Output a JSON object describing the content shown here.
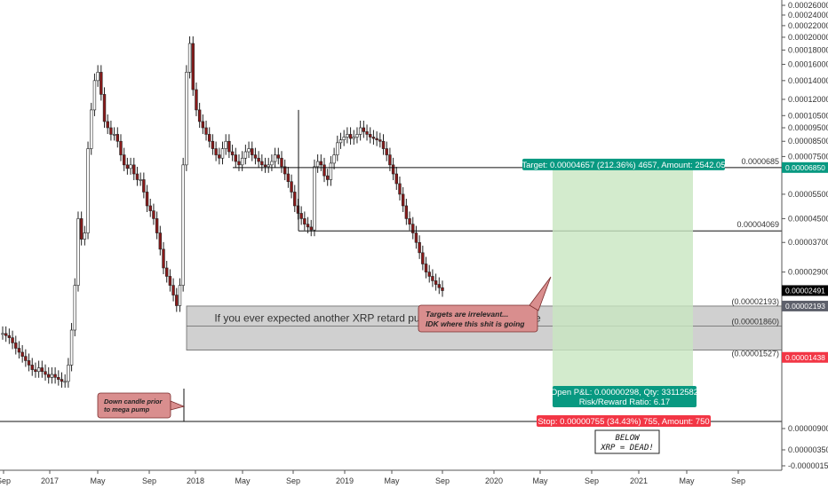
{
  "chart_data": {
    "type": "candlestick",
    "ylabel": "",
    "xlabel": "",
    "y_axis": {
      "scale": "log",
      "range": [
        5.5e-06,
        2.6e-05
      ],
      "labels": [
        {
          "text": "0.00026000",
          "v": 0.00026
        },
        {
          "text": "0.00024000",
          "v": 0.00024
        },
        {
          "text": "0.00022000",
          "v": 0.00022
        },
        {
          "text": "0.00020000",
          "v": 0.0002
        },
        {
          "text": "0.00018000",
          "v": 0.00018
        },
        {
          "text": "0.00016000",
          "v": 0.00016
        },
        {
          "text": "0.00014000",
          "v": 0.00014
        },
        {
          "text": "0.00012000",
          "v": 0.00012
        },
        {
          "text": "0.00010500",
          "v": 0.000105
        },
        {
          "text": "0.00009500",
          "v": 9.5e-05
        },
        {
          "text": "0.00008500",
          "v": 8.5e-05
        },
        {
          "text": "0.00007500",
          "v": 7.5e-05
        },
        {
          "text": "0.00005500",
          "v": 5.5e-05
        },
        {
          "text": "0.00004500",
          "v": 4.5e-05
        },
        {
          "text": "0.00003700",
          "v": 3.7e-05
        },
        {
          "text": "0.00002900",
          "v": 2.9e-05
        },
        {
          "text": "0.00000900",
          "v": 9e-06
        },
        {
          "text": "0.00000350",
          "v": 3.5e-06
        },
        {
          "text": "-0.00000150",
          "v": -1.5e-06
        }
      ],
      "badges": [
        {
          "text": "0.00006850",
          "v": 6.85e-05,
          "color": "#089981"
        },
        {
          "text": "0.00002491",
          "v": 2.491e-05,
          "color": "#000000"
        },
        {
          "text": "0.00002193",
          "v": 2.193e-05,
          "color": "#5d606b"
        },
        {
          "text": "0.00001438",
          "v": 1.438e-05,
          "color": "#f23645"
        }
      ]
    },
    "x_axis": {
      "labels": [
        "Sep",
        "2017",
        "May",
        "Sep",
        "2018",
        "May",
        "Sep",
        "2019",
        "May",
        "Sep",
        "2020",
        "May",
        "Sep",
        "2021",
        "May",
        "Sep"
      ]
    },
    "ohlc_series": {
      "name": "XRP",
      "start": "2016-09",
      "interval": "weekly",
      "closes_approx": [
        1.75e-05,
        1.72e-05,
        1.69e-05,
        1.62e-05,
        1.55e-05,
        1.5e-05,
        1.45e-05,
        1.4e-05,
        1.35e-05,
        1.3e-05,
        1.28e-05,
        1.32e-05,
        1.28e-05,
        1.25e-05,
        1.22e-05,
        1.25e-05,
        1.22e-05,
        1.2e-05,
        1.18e-05,
        1.18e-05,
        1.35e-05,
        1.8e-05,
        2.6e-05,
        4.5e-05,
        3.8e-05,
        4e-05,
        8e-05,
        0.00011,
        0.00014,
        0.00015,
        0.000125,
        0.0001,
        9.5e-05,
        9e-05,
        9e-05,
        8.5e-05,
        7.6e-05,
        7e-05,
        6.8e-05,
        7e-05,
        6.5e-05,
        6.2e-05,
        6.2e-05,
        5.6e-05,
        5e-05,
        4.8e-05,
        4.5e-05,
        4e-05,
        3.5e-05,
        3e-05,
        2.8e-05,
        2.6e-05,
        2.4e-05,
        2.2e-05,
        2.6e-05,
        7e-05,
        0.00015,
        0.00019,
        0.00013,
        0.00011,
        0.0001,
        9.5e-05,
        9e-05,
        8.5e-05,
        8e-05,
        7.6e-05,
        7.4e-05,
        8e-05,
        8.5e-05,
        7.8e-05,
        7.6e-05,
        7.2e-05,
        7e-05,
        7.4e-05,
        7.8e-05,
        8e-05,
        7.6e-05,
        7.4e-05,
        7.2e-05,
        7e-05,
        6.9e-05,
        7e-05,
        7.2e-05,
        7.6e-05,
        7.4e-05,
        6.9e-05,
        6.5e-05,
        6.1e-05,
        5.6e-05,
        5e-05,
        4.7e-05,
        4.5e-05,
        4.3e-05,
        4.2e-05,
        4.1e-05,
        6.9e-05,
        7.2e-05,
        7e-05,
        6.4e-05,
        6.2e-05,
        7.1e-05,
        7.6e-05,
        8.4e-05,
        8.6e-05,
        8.8e-05,
        9e-05,
        8.7e-05,
        8.8e-05,
        9e-05,
        9.5e-05,
        9.2e-05,
        9e-05,
        8.8e-05,
        8.7e-05,
        8.6e-05,
        8.5e-05,
        8e-05,
        7.6e-05,
        7e-05,
        6.5e-05,
        6e-05,
        5.5e-05,
        5e-05,
        4.5e-05,
        4.3e-05,
        4e-05,
        3.7e-05,
        3.4e-05,
        3.1e-05,
        2.9e-05,
        2.8e-05,
        2.7e-05,
        2.62e-05,
        2.55e-05,
        2.49e-05
      ]
    },
    "horizontal_levels": [
      {
        "label": "0.0000685",
        "v": 6.85e-05
      },
      {
        "label": "0.00004069",
        "v": 4.069e-05
      },
      {
        "label": "(0.00002193)",
        "v": 2.193e-05
      },
      {
        "label": "(0.00001860)",
        "v": 1.86e-05
      },
      {
        "label": "(0.00001527)",
        "v": 1.527e-05
      }
    ],
    "annotations": {
      "range_text": "If you ever expected another XRP retard pump it should be from here",
      "callout_left": "Down candle prior to mega pump",
      "callout_right_line1": "Targets are irrelevant...",
      "callout_right_line2": "IDK where this shit is going",
      "target_label": "Target: 0.00004657 (212.36%) 4657, Amount: 2542.05",
      "pnl_line1": "Open P&L: 0.00000298, Qty: 33112582",
      "pnl_line2": "Risk/Reward Ratio: 6.17",
      "stop_label": "Stop: 0.00000755 (34.43%) 755, Amount: 750",
      "note_line1": "BELOW",
      "note_line2": "XRP = DEAD!"
    },
    "colors": {
      "up": "#ffffff",
      "down": "#8b1a1a",
      "wick": "#222222",
      "target_zone": "#c8e6c0",
      "target_badge": "#089981",
      "stop_badge": "#f23645",
      "range_box": "#b0b0b0",
      "callout": "#d98e8e"
    }
  }
}
